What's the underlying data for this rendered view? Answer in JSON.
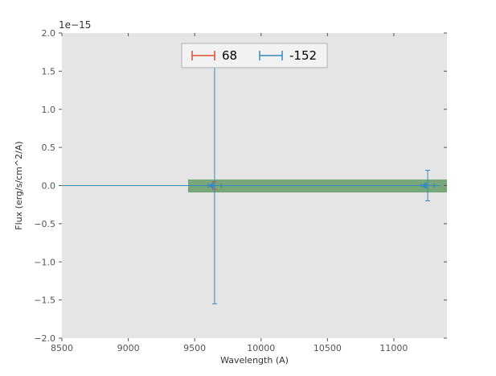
{
  "chart_data": {
    "type": "errorbar",
    "title": "",
    "xlabel": "Wavelength (A)",
    "ylabel": "Flux (erg/s/cm^2/A)",
    "offset_label": "1e−15",
    "xlim": [
      8500,
      11400
    ],
    "ylim": [
      -2.0,
      2.0
    ],
    "xticks": [
      8500,
      9000,
      9500,
      10000,
      10500,
      11000
    ],
    "xtick_labels": [
      "8500",
      "9000",
      "9500",
      "10000",
      "10500",
      "11000"
    ],
    "yticks": [
      -2.0,
      -1.5,
      -1.0,
      -0.5,
      0.0,
      0.5,
      1.0,
      1.5,
      2.0
    ],
    "ytick_labels": [
      "−2.0",
      "−1.5",
      "−1.0",
      "−0.5",
      "0.0",
      "0.5",
      "1.0",
      "1.5",
      "2.0"
    ],
    "grid": false,
    "plot_bg": "#e5e5e5",
    "tick_color": "#555555",
    "label_color": "#333333",
    "band": {
      "x0": 9450,
      "x1": 11400,
      "y0": -0.09,
      "y1": 0.08,
      "color": "#2f7d32",
      "opacity": 0.6
    },
    "zero_line": {
      "x0": 8500,
      "x1": 11350,
      "y": 0.0,
      "color": "#348abd",
      "width": 1
    },
    "series": [
      {
        "name": "68",
        "color": "#e24a33",
        "points": [
          {
            "x": 9650,
            "y": 0.0,
            "xerr": 50,
            "yerr": 0.05
          }
        ]
      },
      {
        "name": "-152",
        "color": "#348abd",
        "points": [
          {
            "x": 9650,
            "y": 0.0,
            "xerr": 50,
            "yerr": 1.55,
            "marker": "caret-left"
          },
          {
            "x": 11255,
            "y": 0.0,
            "xerr": 50,
            "yerr": 0.2,
            "marker": "caret-left"
          }
        ]
      }
    ],
    "legend": {
      "position": "upper center",
      "face_color": "#f2f2f2",
      "edge_color": "#b0b0b0",
      "entries": [
        {
          "label": "68",
          "color": "#e24a33"
        },
        {
          "label": "-152",
          "color": "#348abd"
        }
      ]
    }
  }
}
